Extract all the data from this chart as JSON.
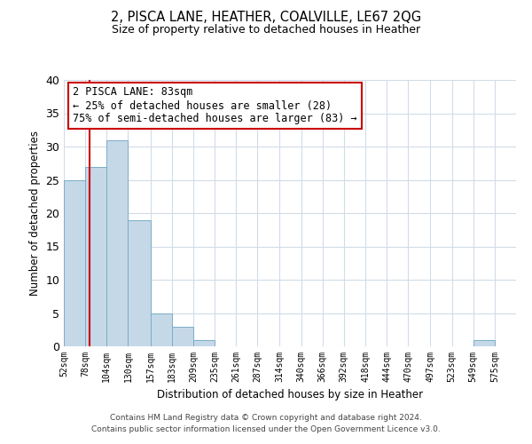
{
  "title1": "2, PISCA LANE, HEATHER, COALVILLE, LE67 2QG",
  "title2": "Size of property relative to detached houses in Heather",
  "xlabel": "Distribution of detached houses by size in Heather",
  "ylabel": "Number of detached properties",
  "bin_labels": [
    "52sqm",
    "78sqm",
    "104sqm",
    "130sqm",
    "157sqm",
    "183sqm",
    "209sqm",
    "235sqm",
    "261sqm",
    "287sqm",
    "314sqm",
    "340sqm",
    "366sqm",
    "392sqm",
    "418sqm",
    "444sqm",
    "470sqm",
    "497sqm",
    "523sqm",
    "549sqm",
    "575sqm"
  ],
  "bin_edges": [
    52,
    78,
    104,
    130,
    157,
    183,
    209,
    235,
    261,
    287,
    314,
    340,
    366,
    392,
    418,
    444,
    470,
    497,
    523,
    549,
    575
  ],
  "bar_heights": [
    25,
    27,
    31,
    19,
    5,
    3,
    1,
    0,
    0,
    0,
    0,
    0,
    0,
    0,
    0,
    0,
    0,
    0,
    0,
    1,
    0
  ],
  "bar_color": "#c5d8e8",
  "bar_edge_color": "#7aaec8",
  "vline_x": 83,
  "vline_color": "#cc0000",
  "ylim": [
    0,
    40
  ],
  "yticks": [
    0,
    5,
    10,
    15,
    20,
    25,
    30,
    35,
    40
  ],
  "annotation_line1": "2 PISCA LANE: 83sqm",
  "annotation_line2": "← 25% of detached houses are smaller (28)",
  "annotation_line3": "75% of semi-detached houses are larger (83) →",
  "footer_line1": "Contains HM Land Registry data © Crown copyright and database right 2024.",
  "footer_line2": "Contains public sector information licensed under the Open Government Licence v3.0.",
  "background_color": "#ffffff",
  "grid_color": "#d0dce8"
}
